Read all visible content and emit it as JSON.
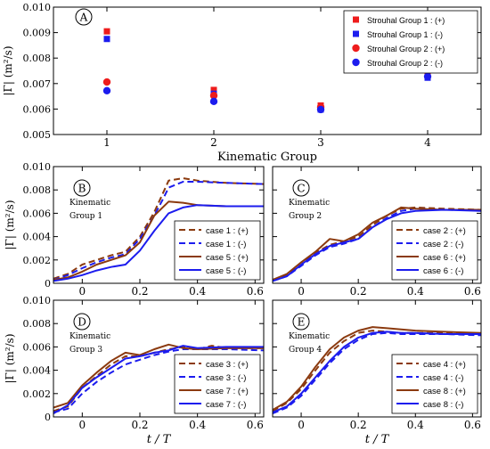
{
  "chart_data": [
    {
      "panel": "A",
      "type": "scatter",
      "xlabel": "Kinematic Group",
      "ylabel": "|Γ| (m²/s)",
      "xlim": [
        0.5,
        4.5
      ],
      "ylim": [
        0.005,
        0.01
      ],
      "xticks": [
        "1",
        "2",
        "3",
        "4"
      ],
      "yticks": [
        "0.005",
        "0.006",
        "0.007",
        "0.008",
        "0.009",
        "0.010"
      ],
      "legend_position": "top-right",
      "series": [
        {
          "name": "Strouhal Group 1 : (+)",
          "color": "#ee1c1c",
          "marker": "square",
          "x": [
            1,
            2,
            3,
            4
          ],
          "y": [
            0.00905,
            0.00675,
            0.00614,
            0.00736
          ]
        },
        {
          "name": "Strouhal Group 1 : (-)",
          "color": "#1c1cee",
          "marker": "square",
          "x": [
            1,
            2,
            3,
            4
          ],
          "y": [
            0.00875,
            0.0066,
            0.00598,
            0.00723
          ]
        },
        {
          "name": "Strouhal Group 2 : (+)",
          "color": "#ee1c1c",
          "marker": "circle",
          "x": [
            1,
            2,
            3,
            4
          ],
          "y": [
            0.00706,
            0.00653,
            0.00608,
            0.0076
          ]
        },
        {
          "name": "Strouhal Group 2 : (-)",
          "color": "#1c1cee",
          "marker": "circle",
          "x": [
            1,
            2,
            3,
            4
          ],
          "y": [
            0.00672,
            0.0063,
            0.00598,
            0.00728
          ]
        }
      ]
    },
    {
      "panel": "B",
      "type": "line",
      "annotation": [
        "Kinematic",
        "Group  1"
      ],
      "xlabel": "",
      "ylabel": "|Γ| (m²/s)",
      "xlim": [
        -0.1,
        0.63
      ],
      "ylim": [
        0,
        0.01
      ],
      "xticks": [
        "0",
        "0.2",
        "0.4",
        "0.6"
      ],
      "yticks": [
        "0",
        "0.002",
        "0.004",
        "0.006",
        "0.008",
        "0.010"
      ],
      "legend_position": "bottom-right",
      "series": [
        {
          "name": "case 1 : (+)",
          "color": "#8b3a0f",
          "dash": true,
          "x": [
            -0.1,
            -0.05,
            0,
            0.05,
            0.1,
            0.15,
            0.2,
            0.25,
            0.28,
            0.3,
            0.35,
            0.4,
            0.5,
            0.63
          ],
          "y": [
            0.0004,
            0.0008,
            0.0016,
            0.002,
            0.0024,
            0.0027,
            0.004,
            0.0061,
            0.0077,
            0.0088,
            0.009,
            0.0088,
            0.0086,
            0.0085
          ]
        },
        {
          "name": "case 1 : (-)",
          "color": "#1c1cee",
          "dash": true,
          "x": [
            -0.1,
            -0.05,
            0,
            0.05,
            0.1,
            0.15,
            0.2,
            0.25,
            0.28,
            0.3,
            0.35,
            0.4,
            0.5,
            0.63
          ],
          "y": [
            0.0003,
            0.0007,
            0.0013,
            0.0018,
            0.0022,
            0.0025,
            0.0038,
            0.0058,
            0.0072,
            0.0082,
            0.0087,
            0.0087,
            0.0086,
            0.0085
          ]
        },
        {
          "name": "case 5 : (+)",
          "color": "#8b3a0f",
          "dash": false,
          "x": [
            -0.1,
            -0.05,
            0,
            0.05,
            0.1,
            0.15,
            0.2,
            0.25,
            0.3,
            0.35,
            0.4,
            0.5,
            0.63
          ],
          "y": [
            0.0003,
            0.0005,
            0.001,
            0.0016,
            0.002,
            0.0024,
            0.0035,
            0.0058,
            0.007,
            0.0069,
            0.0067,
            0.0066,
            0.0066
          ]
        },
        {
          "name": "case 5 : (-)",
          "color": "#1c1cee",
          "dash": false,
          "x": [
            -0.1,
            -0.05,
            0,
            0.05,
            0.1,
            0.15,
            0.2,
            0.25,
            0.3,
            0.35,
            0.4,
            0.5,
            0.63
          ],
          "y": [
            0.0002,
            0.0004,
            0.0007,
            0.0011,
            0.0014,
            0.0016,
            0.0028,
            0.0045,
            0.006,
            0.0065,
            0.0067,
            0.0066,
            0.0066
          ]
        }
      ]
    },
    {
      "panel": "C",
      "type": "line",
      "annotation": [
        "Kinematic",
        "Group  2"
      ],
      "xlabel": "",
      "ylabel": "",
      "xlim": [
        -0.1,
        0.63
      ],
      "ylim": [
        0,
        0.01
      ],
      "xticks": [
        "0",
        "0.2",
        "0.4",
        "0.6"
      ],
      "yticks": [],
      "legend_position": "bottom-right",
      "series": [
        {
          "name": "case 2 : (+)",
          "color": "#8b3a0f",
          "dash": true,
          "x": [
            -0.1,
            -0.05,
            0,
            0.05,
            0.1,
            0.15,
            0.2,
            0.25,
            0.3,
            0.35,
            0.4,
            0.5,
            0.63
          ],
          "y": [
            0.0003,
            0.0007,
            0.0016,
            0.0026,
            0.0033,
            0.0036,
            0.004,
            0.005,
            0.0058,
            0.0064,
            0.0065,
            0.0064,
            0.0063
          ]
        },
        {
          "name": "case 2 : (-)",
          "color": "#1c1cee",
          "dash": true,
          "x": [
            -0.1,
            -0.05,
            0,
            0.05,
            0.1,
            0.15,
            0.2,
            0.25,
            0.3,
            0.35,
            0.4,
            0.5,
            0.63
          ],
          "y": [
            0.0002,
            0.0006,
            0.0015,
            0.0024,
            0.0031,
            0.0034,
            0.0038,
            0.0048,
            0.0056,
            0.0062,
            0.0064,
            0.0063,
            0.0063
          ]
        },
        {
          "name": "case 6 : (+)",
          "color": "#8b3a0f",
          "dash": false,
          "x": [
            -0.1,
            -0.05,
            0,
            0.05,
            0.1,
            0.15,
            0.2,
            0.25,
            0.3,
            0.35,
            0.4,
            0.5,
            0.63
          ],
          "y": [
            0.0003,
            0.0008,
            0.0018,
            0.0027,
            0.0038,
            0.0036,
            0.0042,
            0.0052,
            0.0058,
            0.0065,
            0.0064,
            0.0063,
            0.0063
          ]
        },
        {
          "name": "case 6 : (-)",
          "color": "#1c1cee",
          "dash": false,
          "x": [
            -0.1,
            -0.05,
            0,
            0.05,
            0.1,
            0.15,
            0.2,
            0.25,
            0.3,
            0.35,
            0.4,
            0.5,
            0.63
          ],
          "y": [
            0.0002,
            0.0006,
            0.0016,
            0.0025,
            0.0032,
            0.0035,
            0.0038,
            0.0048,
            0.0055,
            0.006,
            0.0062,
            0.0063,
            0.0062
          ]
        }
      ]
    },
    {
      "panel": "D",
      "type": "line",
      "annotation": [
        "Kinematic",
        "Group  3"
      ],
      "xlabel": "t / T",
      "ylabel": "|Γ| (m²/s)",
      "xlim": [
        -0.1,
        0.63
      ],
      "ylim": [
        0,
        0.01
      ],
      "xticks": [
        "0",
        "0.2",
        "0.4",
        "0.6"
      ],
      "yticks": [
        "0",
        "0.002",
        "0.004",
        "0.006",
        "0.008",
        "0.010"
      ],
      "legend_position": "bottom-right",
      "series": [
        {
          "name": "case 3 : (+)",
          "color": "#8b3a0f",
          "dash": true,
          "x": [
            -0.1,
            -0.05,
            0,
            0.05,
            0.1,
            0.15,
            0.2,
            0.25,
            0.3,
            0.35,
            0.4,
            0.45,
            0.5,
            0.63
          ],
          "y": [
            0.0005,
            0.0009,
            0.0025,
            0.0035,
            0.0045,
            0.0052,
            0.0052,
            0.0055,
            0.0058,
            0.006,
            0.0058,
            0.0061,
            0.0059,
            0.0059
          ]
        },
        {
          "name": "case 3 : (-)",
          "color": "#1c1cee",
          "dash": true,
          "x": [
            -0.1,
            -0.05,
            0,
            0.05,
            0.1,
            0.15,
            0.2,
            0.25,
            0.3,
            0.35,
            0.4,
            0.5,
            0.63
          ],
          "y": [
            0.0004,
            0.0007,
            0.002,
            0.003,
            0.0038,
            0.0045,
            0.0049,
            0.0053,
            0.0056,
            0.0058,
            0.0058,
            0.0058,
            0.0057
          ]
        },
        {
          "name": "case 7 : (+)",
          "color": "#8b3a0f",
          "dash": false,
          "x": [
            -0.1,
            -0.05,
            0,
            0.05,
            0.1,
            0.15,
            0.2,
            0.25,
            0.3,
            0.35,
            0.4,
            0.5,
            0.63
          ],
          "y": [
            0.0008,
            0.0012,
            0.0027,
            0.0038,
            0.0048,
            0.0055,
            0.0053,
            0.0058,
            0.0062,
            0.0059,
            0.0058,
            0.0059,
            0.0059
          ]
        },
        {
          "name": "case 7 : (-)",
          "color": "#1c1cee",
          "dash": false,
          "x": [
            -0.1,
            -0.05,
            0,
            0.05,
            0.1,
            0.15,
            0.2,
            0.25,
            0.3,
            0.35,
            0.4,
            0.5,
            0.63
          ],
          "y": [
            0.0003,
            0.001,
            0.0025,
            0.0034,
            0.0042,
            0.005,
            0.0052,
            0.0055,
            0.0057,
            0.0061,
            0.0059,
            0.006,
            0.006
          ]
        }
      ]
    },
    {
      "panel": "E",
      "type": "line",
      "annotation": [
        "Kinematic",
        "Group  4"
      ],
      "xlabel": "t / T",
      "ylabel": "",
      "xlim": [
        -0.1,
        0.63
      ],
      "ylim": [
        0,
        0.01
      ],
      "xticks": [
        "0",
        "0.2",
        "0.4",
        "0.6"
      ],
      "yticks": [],
      "legend_position": "bottom-right",
      "series": [
        {
          "name": "case 4 : (+)",
          "color": "#8b3a0f",
          "dash": true,
          "x": [
            -0.1,
            -0.05,
            0,
            0.05,
            0.1,
            0.15,
            0.2,
            0.25,
            0.3,
            0.35,
            0.4,
            0.5,
            0.63
          ],
          "y": [
            0.0005,
            0.0012,
            0.0024,
            0.004,
            0.0055,
            0.0065,
            0.0072,
            0.0074,
            0.0073,
            0.0072,
            0.0072,
            0.0072,
            0.0071
          ]
        },
        {
          "name": "case 4 : (-)",
          "color": "#1c1cee",
          "dash": true,
          "x": [
            -0.1,
            -0.05,
            0,
            0.05,
            0.1,
            0.15,
            0.2,
            0.25,
            0.3,
            0.35,
            0.4,
            0.5,
            0.63
          ],
          "y": [
            0.0003,
            0.0008,
            0.0018,
            0.0032,
            0.0046,
            0.0058,
            0.0066,
            0.0071,
            0.0072,
            0.0071,
            0.0071,
            0.0071,
            0.007
          ]
        },
        {
          "name": "case 8 : (+)",
          "color": "#8b3a0f",
          "dash": false,
          "x": [
            -0.1,
            -0.05,
            0,
            0.05,
            0.1,
            0.15,
            0.2,
            0.25,
            0.3,
            0.35,
            0.4,
            0.5,
            0.63
          ],
          "y": [
            0.0006,
            0.0013,
            0.0026,
            0.0043,
            0.0058,
            0.0068,
            0.0074,
            0.0077,
            0.0076,
            0.0075,
            0.0074,
            0.0073,
            0.0072
          ]
        },
        {
          "name": "case 8 : (-)",
          "color": "#1c1cee",
          "dash": false,
          "x": [
            -0.1,
            -0.05,
            0,
            0.05,
            0.1,
            0.15,
            0.2,
            0.25,
            0.3,
            0.35,
            0.4,
            0.5,
            0.63
          ],
          "y": [
            0.0004,
            0.0009,
            0.002,
            0.0034,
            0.0048,
            0.006,
            0.0068,
            0.0072,
            0.0073,
            0.0072,
            0.0072,
            0.0071,
            0.0071
          ]
        }
      ]
    }
  ]
}
